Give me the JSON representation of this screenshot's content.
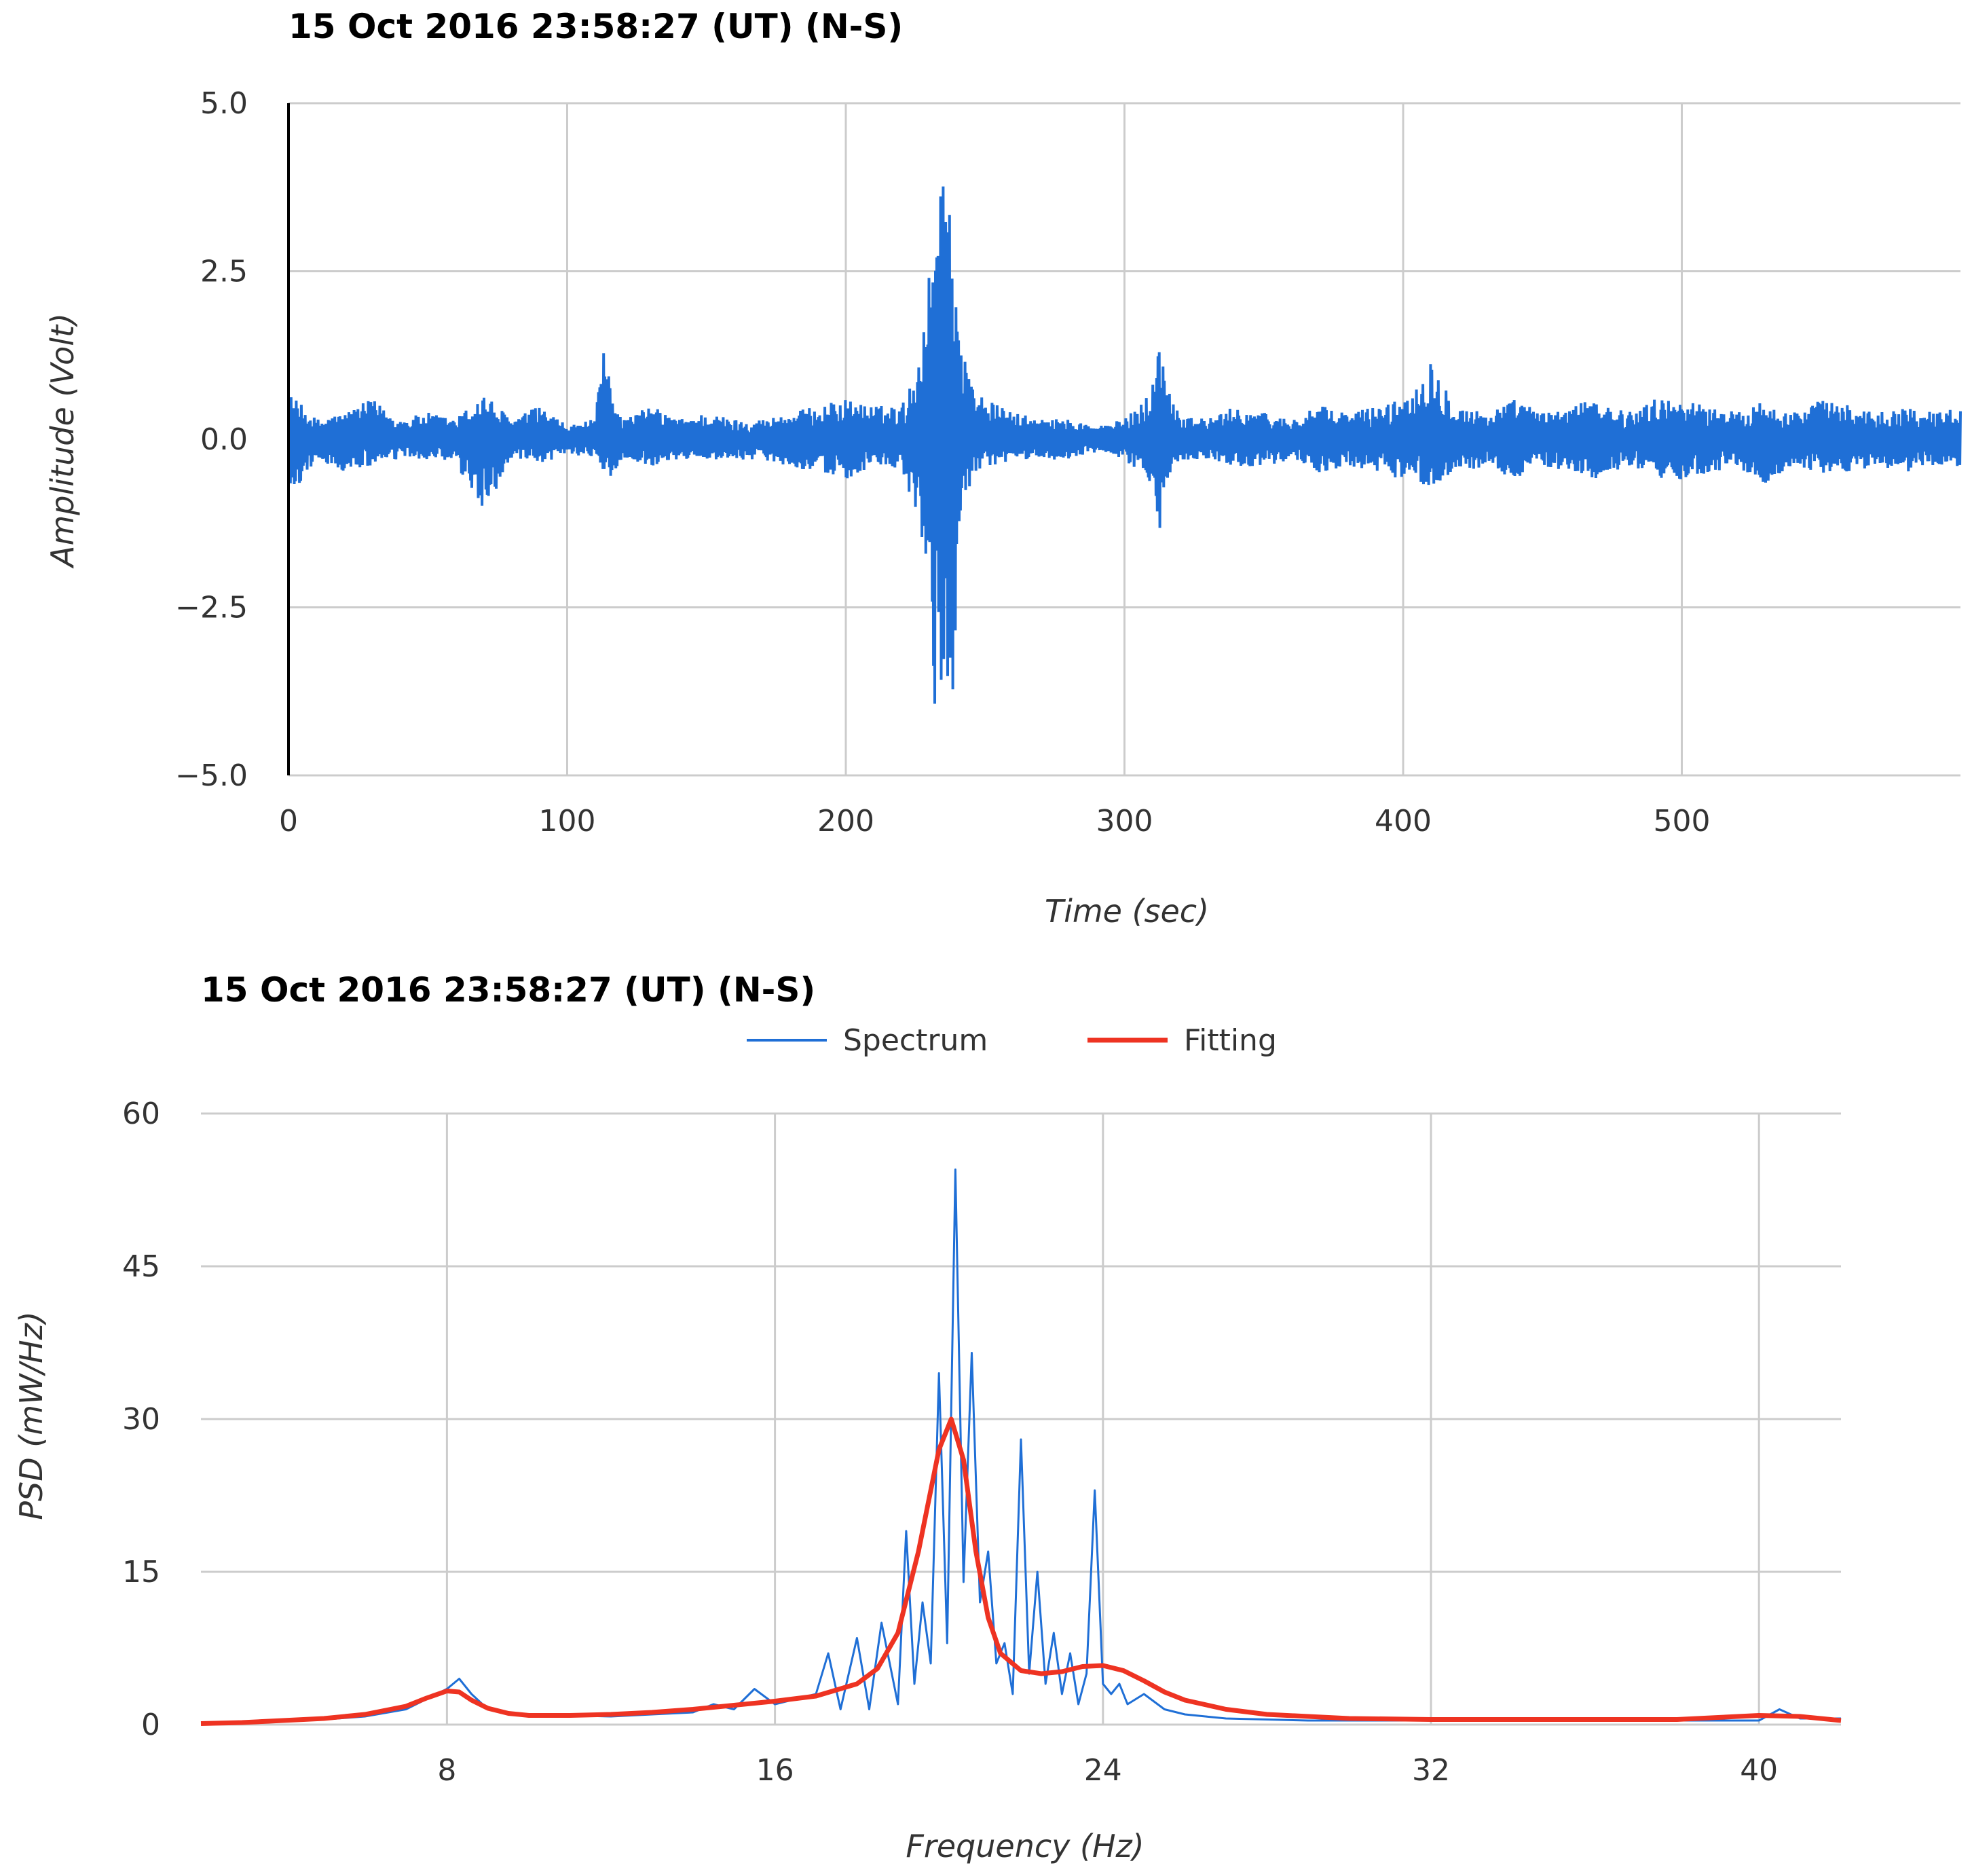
{
  "chart_data": [
    {
      "type": "line",
      "title": "15 Oct 2016  23:58:27 (UT) (N-S)",
      "xlabel": "Time (sec)",
      "ylabel": "Amplitude (Volt)",
      "xlim": [
        0,
        600
      ],
      "ylim": [
        -5.0,
        5.0
      ],
      "x_ticks": [
        "0",
        "100",
        "200",
        "300",
        "400",
        "500"
      ],
      "y_ticks": [
        "5.0",
        "2.5",
        "0.0",
        "−2.5",
        "−5.0"
      ],
      "grid": true,
      "legend": "none",
      "color": "#1f6fd6",
      "series": [
        {
          "x": [
            0,
            10,
            20,
            30,
            40,
            50,
            60,
            70,
            80,
            90,
            100,
            110,
            113,
            120,
            130,
            140,
            150,
            160,
            170,
            180,
            190,
            200,
            210,
            220,
            225,
            230,
            232,
            234,
            236,
            238,
            240,
            242,
            245,
            250,
            260,
            270,
            280,
            290,
            300,
            305,
            310,
            312,
            315,
            320,
            330,
            340,
            350,
            360,
            370,
            380,
            390,
            400,
            410,
            420,
            430,
            440,
            450,
            460,
            470,
            480,
            490,
            500,
            510,
            520,
            530,
            540,
            550,
            560,
            570,
            580,
            590,
            600
          ],
          "upper": [
            0.7,
            0.3,
            0.4,
            0.6,
            0.3,
            0.4,
            0.3,
            0.7,
            0.3,
            0.5,
            0.2,
            0.3,
            1.3,
            0.3,
            0.5,
            0.3,
            0.4,
            0.3,
            0.3,
            0.4,
            0.5,
            0.6,
            0.5,
            0.5,
            1.0,
            2.5,
            4.1,
            4.1,
            4.1,
            4.1,
            2.3,
            1.3,
            0.9,
            0.6,
            0.4,
            0.3,
            0.3,
            0.2,
            0.3,
            0.5,
            0.8,
            1.6,
            0.9,
            0.4,
            0.3,
            0.5,
            0.4,
            0.3,
            0.5,
            0.4,
            0.5,
            0.6,
            1.2,
            0.5,
            0.4,
            0.6,
            0.4,
            0.5,
            0.6,
            0.4,
            0.6,
            0.6,
            0.5,
            0.4,
            0.6,
            0.4,
            0.6,
            0.5,
            0.4,
            0.5,
            0.4,
            0.5
          ],
          "lower": [
            -0.9,
            -0.3,
            -0.5,
            -0.4,
            -0.3,
            -0.3,
            -0.4,
            -1.1,
            -0.3,
            -0.4,
            -0.2,
            -0.3,
            -0.7,
            -0.3,
            -0.4,
            -0.3,
            -0.3,
            -0.3,
            -0.3,
            -0.4,
            -0.5,
            -0.6,
            -0.4,
            -0.5,
            -1.1,
            -2.3,
            -4.1,
            -4.1,
            -4.1,
            -4.1,
            -2.3,
            -1.1,
            -0.6,
            -0.5,
            -0.3,
            -0.3,
            -0.3,
            -0.2,
            -0.3,
            -0.5,
            -0.8,
            -1.6,
            -0.6,
            -0.3,
            -0.3,
            -0.4,
            -0.4,
            -0.3,
            -0.5,
            -0.4,
            -0.5,
            -0.6,
            -0.7,
            -0.5,
            -0.4,
            -0.6,
            -0.4,
            -0.5,
            -0.6,
            -0.4,
            -0.6,
            -0.6,
            -0.5,
            -0.4,
            -0.7,
            -0.4,
            -0.5,
            -0.5,
            -0.4,
            -0.5,
            -0.4,
            -0.4
          ]
        }
      ]
    },
    {
      "type": "line",
      "title": "15 Oct 2016  23:58:27 (UT) (N-S)",
      "xlabel": "Frequency (Hz)",
      "ylabel": "PSD (mW/Hz)",
      "xlim": [
        2,
        42
      ],
      "ylim": [
        0,
        60
      ],
      "x_ticks": [
        "8",
        "16",
        "24",
        "32",
        "40"
      ],
      "y_ticks": [
        "60",
        "45",
        "30",
        "15",
        "0"
      ],
      "grid": true,
      "legend": "top-center",
      "series": [
        {
          "name": "Spectrum",
          "color": "#1f6fd6",
          "x": [
            2,
            3,
            4,
            5,
            6,
            7,
            7.5,
            8,
            8.3,
            8.6,
            9,
            9.5,
            10,
            11,
            12,
            13,
            14,
            14.5,
            15,
            15.5,
            16,
            16.5,
            17,
            17.3,
            17.6,
            18,
            18.3,
            18.6,
            19,
            19.2,
            19.4,
            19.6,
            19.8,
            20,
            20.2,
            20.4,
            20.6,
            20.8,
            21,
            21.2,
            21.4,
            21.6,
            21.8,
            22,
            22.2,
            22.4,
            22.6,
            22.8,
            23,
            23.2,
            23.4,
            23.6,
            23.8,
            24,
            24.2,
            24.4,
            24.6,
            25,
            25.5,
            26,
            26.5,
            27,
            28,
            29,
            30,
            32,
            34,
            36,
            38,
            40,
            40.5,
            41,
            42
          ],
          "values": [
            0.2,
            0.2,
            0.3,
            0.5,
            0.8,
            1.5,
            2.5,
            3.5,
            4.5,
            3.0,
            1.5,
            1.0,
            0.9,
            0.9,
            0.8,
            1.0,
            1.2,
            2.0,
            1.5,
            3.5,
            2.0,
            2.5,
            3.0,
            7.0,
            1.5,
            8.5,
            1.5,
            10.0,
            2.0,
            19.0,
            4.0,
            12.0,
            6.0,
            34.5,
            8.0,
            54.5,
            14.0,
            36.5,
            12.0,
            17.0,
            6.0,
            8.0,
            3.0,
            28.0,
            5.0,
            15.0,
            4.0,
            9.0,
            3.0,
            7.0,
            2.0,
            5.0,
            23.0,
            4.0,
            3.0,
            4.0,
            2.0,
            3.0,
            1.5,
            1.0,
            0.8,
            0.6,
            0.5,
            0.4,
            0.4,
            0.4,
            0.4,
            0.4,
            0.4,
            0.4,
            1.5,
            0.6,
            0.6
          ]
        },
        {
          "name": "Fitting",
          "color": "#ee3322",
          "x": [
            2,
            3,
            4,
            5,
            6,
            7,
            7.5,
            8,
            8.3,
            8.6,
            9,
            9.5,
            10,
            11,
            12,
            13,
            14,
            15,
            16,
            17,
            18,
            18.5,
            19,
            19.5,
            20,
            20.3,
            20.6,
            20.9,
            21.2,
            21.5,
            22,
            22.5,
            23,
            23.5,
            24,
            24.5,
            25,
            25.5,
            26,
            27,
            28,
            29,
            30,
            32,
            34,
            36,
            38,
            40,
            41,
            42
          ],
          "values": [
            0.1,
            0.2,
            0.4,
            0.6,
            1.0,
            1.8,
            2.6,
            3.3,
            3.2,
            2.4,
            1.6,
            1.1,
            0.9,
            0.9,
            1.0,
            1.2,
            1.5,
            1.9,
            2.3,
            2.8,
            4.0,
            5.5,
            9.0,
            17.0,
            27.0,
            30.0,
            26.0,
            17.0,
            10.5,
            7.0,
            5.3,
            5.0,
            5.2,
            5.7,
            5.8,
            5.3,
            4.3,
            3.2,
            2.4,
            1.5,
            1.0,
            0.8,
            0.6,
            0.5,
            0.5,
            0.5,
            0.5,
            0.9,
            0.8,
            0.4
          ]
        }
      ]
    }
  ]
}
